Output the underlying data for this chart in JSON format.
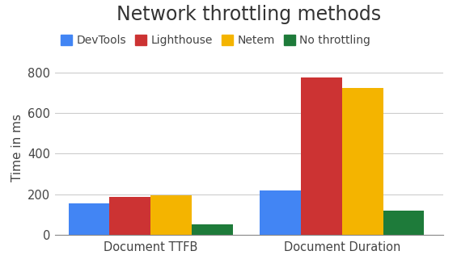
{
  "title": "Network throttling methods",
  "ylabel": "Time in ms",
  "categories": [
    "Document TTFB",
    "Document Duration"
  ],
  "series": [
    {
      "label": "DevTools",
      "color": "#4285F4",
      "values": [
        153,
        220
      ]
    },
    {
      "label": "Lighthouse",
      "color": "#CC3333",
      "values": [
        185,
        778
      ]
    },
    {
      "label": "Netem",
      "color": "#F4B400",
      "values": [
        195,
        725
      ]
    },
    {
      "label": "No throttling",
      "color": "#1E7B3A",
      "values": [
        52,
        120
      ]
    }
  ],
  "ylim": [
    0,
    860
  ],
  "yticks": [
    0,
    200,
    400,
    600,
    800
  ],
  "background_color": "#ffffff",
  "plot_bg_color": "#ffffff",
  "grid_color": "#cccccc",
  "bar_width": 0.15,
  "title_fontsize": 17,
  "tick_fontsize": 10.5,
  "legend_fontsize": 10,
  "ylabel_fontsize": 11,
  "xlabel_fontsize": 11
}
